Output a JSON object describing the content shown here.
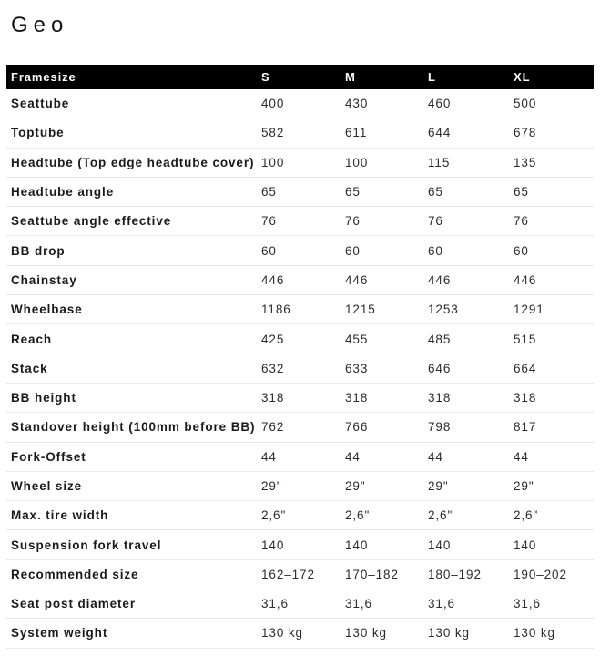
{
  "page": {
    "title": "Geo"
  },
  "colors": {
    "header_bg": "#000000",
    "header_text": "#ffffff",
    "row_divider": "#e7e7e7",
    "label_text": "#1a1a1a",
    "value_text": "#2b2b2b"
  },
  "table": {
    "columns": [
      "Framesize",
      "S",
      "M",
      "L",
      "XL"
    ],
    "rows": [
      {
        "label": "Seattube",
        "values": [
          "400",
          "430",
          "460",
          "500"
        ]
      },
      {
        "label": "Toptube",
        "values": [
          "582",
          "611",
          "644",
          "678"
        ]
      },
      {
        "label": "Headtube (Top edge headtube cover)",
        "values": [
          "100",
          "100",
          "115",
          "135"
        ]
      },
      {
        "label": "Headtube angle",
        "values": [
          "65",
          "65",
          "65",
          "65"
        ]
      },
      {
        "label": "Seattube angle effective",
        "values": [
          "76",
          "76",
          "76",
          "76"
        ]
      },
      {
        "label": "BB drop",
        "values": [
          "60",
          "60",
          "60",
          "60"
        ]
      },
      {
        "label": "Chainstay",
        "values": [
          "446",
          "446",
          "446",
          "446"
        ]
      },
      {
        "label": "Wheelbase",
        "values": [
          "1186",
          "1215",
          "1253",
          "1291"
        ]
      },
      {
        "label": "Reach",
        "values": [
          "425",
          "455",
          "485",
          "515"
        ]
      },
      {
        "label": "Stack",
        "values": [
          "632",
          "633",
          "646",
          "664"
        ]
      },
      {
        "label": "BB height",
        "values": [
          "318",
          "318",
          "318",
          "318"
        ]
      },
      {
        "label": "Standover height (100mm before BB)",
        "values": [
          "762",
          "766",
          "798",
          "817"
        ]
      },
      {
        "label": "Fork-Offset",
        "values": [
          "44",
          "44",
          "44",
          "44"
        ]
      },
      {
        "label": "Wheel size",
        "values": [
          "29\"",
          "29\"",
          "29\"",
          "29\""
        ]
      },
      {
        "label": "Max. tire width",
        "values": [
          "2,6\"",
          "2,6\"",
          "2,6\"",
          "2,6\""
        ]
      },
      {
        "label": "Suspension fork travel",
        "values": [
          "140",
          "140",
          "140",
          "140"
        ]
      },
      {
        "label": "Recommended size",
        "values": [
          "162–172",
          "170–182",
          "180–192",
          "190–202"
        ]
      },
      {
        "label": "Seat post diameter",
        "values": [
          "31,6",
          "31,6",
          "31,6",
          "31,6"
        ]
      },
      {
        "label": "System weight",
        "values": [
          "130 kg",
          "130 kg",
          "130 kg",
          "130 kg"
        ]
      }
    ]
  }
}
